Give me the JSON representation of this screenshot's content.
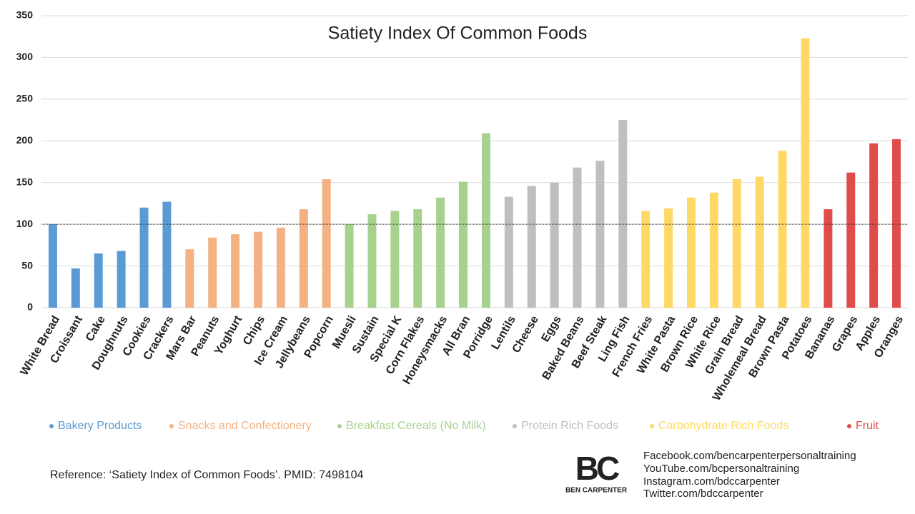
{
  "chart_data": {
    "type": "bar",
    "title": "Satiety Index Of Common Foods",
    "categories": [
      "White Bread",
      "Croissant",
      "Cake",
      "Doughnuts",
      "Cookies",
      "Crackers",
      "Mars Bar",
      "Peanuts",
      "Yoghurt",
      "Chips",
      "Ice Cream",
      "Jellybeans",
      "Popcorn",
      "Muesli",
      "Sustain",
      "Special K",
      "Corn Flakes",
      "Honeysmacks",
      "All Bran",
      "Porridge",
      "Lentils",
      "Cheese",
      "Eggs",
      "Baked Beans",
      "Beef Steak",
      "Ling Fish",
      "French Fries",
      "White Pasta",
      "Brown Rice",
      "White Rice",
      "Grain Bread",
      "Wholemeal Bread",
      "Brown Pasta",
      "Potatoes",
      "Bananas",
      "Grapes",
      "Apples",
      "Oranges"
    ],
    "series": [
      {
        "name": "Bakery Products",
        "color": "#5b9bd5",
        "values": [
          100,
          47,
          65,
          68,
          120,
          127,
          null,
          null,
          null,
          null,
          null,
          null,
          null,
          null,
          null,
          null,
          null,
          null,
          null,
          null,
          null,
          null,
          null,
          null,
          null,
          null,
          null,
          null,
          null,
          null,
          null,
          null,
          null,
          null,
          null,
          null,
          null,
          null
        ]
      },
      {
        "name": "Snacks and Confectionery",
        "color": "#f4b183",
        "values": [
          null,
          null,
          null,
          null,
          null,
          null,
          70,
          84,
          88,
          91,
          96,
          118,
          154,
          null,
          null,
          null,
          null,
          null,
          null,
          null,
          null,
          null,
          null,
          null,
          null,
          null,
          null,
          null,
          null,
          null,
          null,
          null,
          null,
          null,
          null,
          null,
          null,
          null
        ]
      },
      {
        "name": "Breakfast Cereals (No Milk)",
        "color": "#a9d18e",
        "values": [
          null,
          null,
          null,
          null,
          null,
          null,
          null,
          null,
          null,
          null,
          null,
          null,
          null,
          100,
          112,
          116,
          118,
          132,
          151,
          209,
          null,
          null,
          null,
          null,
          null,
          null,
          null,
          null,
          null,
          null,
          null,
          null,
          null,
          null,
          null,
          null,
          null,
          null
        ]
      },
      {
        "name": "Protein Rich Foods",
        "color": "#bfbfbf",
        "values": [
          null,
          null,
          null,
          null,
          null,
          null,
          null,
          null,
          null,
          null,
          null,
          null,
          null,
          null,
          null,
          null,
          null,
          null,
          null,
          null,
          133,
          146,
          150,
          168,
          176,
          225,
          null,
          null,
          null,
          null,
          null,
          null,
          null,
          null,
          null,
          null,
          null,
          null
        ]
      },
      {
        "name": "Carbohydrate Rich Foods",
        "color": "#ffd966",
        "values": [
          null,
          null,
          null,
          null,
          null,
          null,
          null,
          null,
          null,
          null,
          null,
          null,
          null,
          null,
          null,
          null,
          null,
          null,
          null,
          null,
          null,
          null,
          null,
          null,
          null,
          null,
          116,
          119,
          132,
          138,
          154,
          157,
          188,
          323,
          null,
          null,
          null,
          null
        ]
      },
      {
        "name": "Fruit",
        "color": "#e04c4c",
        "values": [
          null,
          null,
          null,
          null,
          null,
          null,
          null,
          null,
          null,
          null,
          null,
          null,
          null,
          null,
          null,
          null,
          null,
          null,
          null,
          null,
          null,
          null,
          null,
          null,
          null,
          null,
          null,
          null,
          null,
          null,
          null,
          null,
          null,
          null,
          118,
          162,
          197,
          202
        ]
      }
    ],
    "ylim": [
      0,
      350
    ],
    "yticks": [
      0,
      50,
      100,
      150,
      200,
      250,
      300,
      350
    ],
    "grid": true,
    "reference_line": 100
  },
  "footer": {
    "reference": "Reference: ‘Satiety Index of Common Foods’. PMID: 7498104",
    "logo": "BC",
    "brand": "BEN CARPENTER",
    "links": [
      "Facebook.com/bencarpenterpersonaltraining",
      "YouTube.com/bcpersonaltraining",
      "Instagram.com/bdccarpenter",
      "Twitter.com/bdccarpenter"
    ]
  }
}
